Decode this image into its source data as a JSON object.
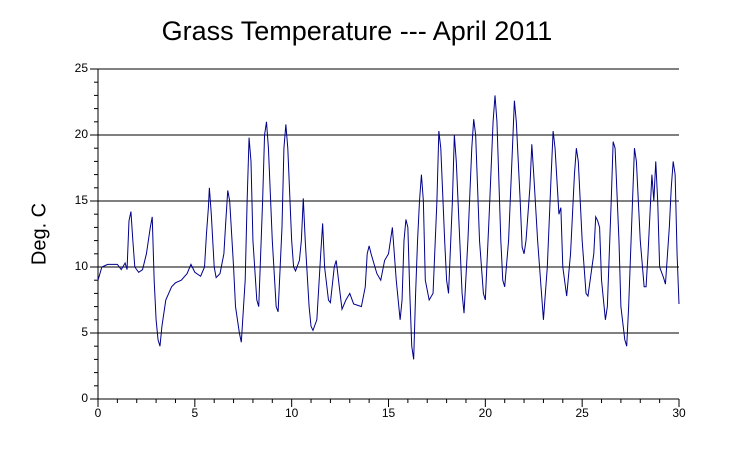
{
  "chart_data": {
    "type": "line",
    "title": "Grass Temperature --- April 2011",
    "y_label": "Deg. C",
    "xlim": [
      0,
      30
    ],
    "xticks": [
      0,
      5,
      10,
      15,
      20,
      25,
      30
    ],
    "ylim": [
      0,
      25
    ],
    "yticks": [
      0,
      5,
      10,
      15,
      20,
      25
    ],
    "grid": true,
    "series": [
      {
        "color": "#00008b",
        "x": [
          0,
          0.2,
          0.5,
          1,
          1.2,
          1.4,
          1.5,
          1.6,
          1.7,
          1.8,
          1.9,
          2.1,
          2.3,
          2.5,
          2.7,
          2.8,
          2.9,
          3.0,
          3.1,
          3.2,
          3.3,
          3.5,
          3.8,
          4.0,
          4.3,
          4.6,
          4.8,
          5.0,
          5.3,
          5.5,
          5.6,
          5.7,
          5.75,
          5.85,
          6.0,
          6.1,
          6.3,
          6.5,
          6.6,
          6.7,
          6.8,
          7.0,
          7.1,
          7.3,
          7.4,
          7.6,
          7.7,
          7.8,
          7.9,
          8.0,
          8.2,
          8.3,
          8.5,
          8.6,
          8.7,
          8.8,
          9.0,
          9.2,
          9.3,
          9.5,
          9.6,
          9.7,
          9.8,
          10.0,
          10.1,
          10.2,
          10.4,
          10.5,
          10.6,
          10.7,
          10.9,
          11.0,
          11.1,
          11.3,
          11.5,
          11.6,
          11.7,
          11.9,
          12.0,
          12.2,
          12.3,
          12.5,
          12.6,
          12.8,
          13.0,
          13.2,
          13.4,
          13.6,
          13.8,
          13.9,
          14.0,
          14.1,
          14.3,
          14.4,
          14.6,
          14.8,
          15.0,
          15.2,
          15.4,
          15.6,
          15.7,
          15.8,
          15.9,
          16.0,
          16.1,
          16.2,
          16.3,
          16.4,
          16.5,
          16.6,
          16.7,
          16.8,
          16.9,
          17.1,
          17.3,
          17.5,
          17.6,
          17.7,
          17.9,
          18.0,
          18.1,
          18.3,
          18.4,
          18.5,
          18.8,
          18.9,
          19.1,
          19.3,
          19.4,
          19.5,
          19.7,
          19.9,
          20.0,
          20.2,
          20.4,
          20.5,
          20.6,
          20.8,
          20.9,
          21.0,
          21.2,
          21.4,
          21.5,
          21.6,
          21.8,
          21.9,
          22.0,
          22.1,
          22.3,
          22.4,
          22.5,
          22.7,
          22.9,
          23.0,
          23.2,
          23.4,
          23.5,
          23.6,
          23.8,
          23.9,
          24.0,
          24.2,
          24.4,
          24.6,
          24.7,
          24.8,
          25.0,
          25.2,
          25.3,
          25.6,
          25.7,
          25.8,
          25.9,
          26.0,
          26.2,
          26.3,
          26.5,
          26.6,
          26.7,
          26.9,
          27.0,
          27.2,
          27.3,
          27.4,
          27.6,
          27.7,
          27.8,
          28.0,
          28.2,
          28.3,
          28.4,
          28.6,
          28.7,
          28.8,
          28.9,
          29.0,
          29.2,
          29.3,
          29.5,
          29.6,
          29.7,
          29.8,
          29.9,
          30.0
        ],
        "values": [
          9,
          10,
          10.2,
          10.2,
          9.8,
          10.3,
          9.8,
          13.5,
          14.2,
          12,
          10,
          9.6,
          9.8,
          11,
          13,
          13.8,
          9,
          6,
          4.5,
          4,
          5.5,
          7.5,
          8.5,
          8.8,
          9,
          9.5,
          10.2,
          9.6,
          9.3,
          10,
          12.5,
          14.5,
          16,
          14,
          10,
          9.2,
          9.5,
          11,
          13.5,
          15.8,
          15,
          10,
          7,
          5,
          4.3,
          9,
          15,
          19.8,
          18,
          12,
          7.5,
          7,
          15,
          20,
          21,
          19,
          12,
          7,
          6.6,
          13,
          19,
          20.8,
          19,
          12,
          10,
          9.7,
          10.5,
          12,
          15.2,
          12,
          7,
          5.5,
          5.2,
          6,
          11,
          13.3,
          10,
          7.5,
          7.3,
          10,
          10.5,
          8,
          6.8,
          7.5,
          8,
          7.2,
          7.1,
          7,
          8.5,
          11,
          11.6,
          11,
          10,
          9.5,
          9,
          10.5,
          11,
          13,
          9,
          6,
          7.5,
          12,
          13.6,
          13,
          8,
          4,
          3,
          8,
          12,
          15,
          17,
          15,
          9,
          7.5,
          8,
          15,
          20.3,
          19,
          12,
          9,
          8,
          15,
          20,
          18,
          8,
          6.5,
          12,
          19,
          21.2,
          20,
          12,
          8,
          7.5,
          14,
          21,
          23,
          21,
          12,
          9,
          8.5,
          12,
          19,
          22.6,
          21,
          15,
          11.5,
          11,
          12,
          16,
          19.3,
          17,
          12,
          8,
          6,
          10,
          17,
          20.3,
          19,
          14,
          14.5,
          10,
          7.8,
          11,
          17,
          19,
          18,
          12,
          8,
          7.8,
          11,
          13.8,
          13.5,
          13,
          9,
          6,
          7,
          15,
          19.5,
          19,
          12,
          7,
          4.5,
          4,
          7,
          15,
          19,
          18,
          12,
          8.5,
          8.5,
          11,
          17,
          15,
          18,
          15,
          10,
          9.2,
          8.7,
          13,
          16,
          18,
          17,
          11,
          7.2
        ]
      }
    ]
  }
}
